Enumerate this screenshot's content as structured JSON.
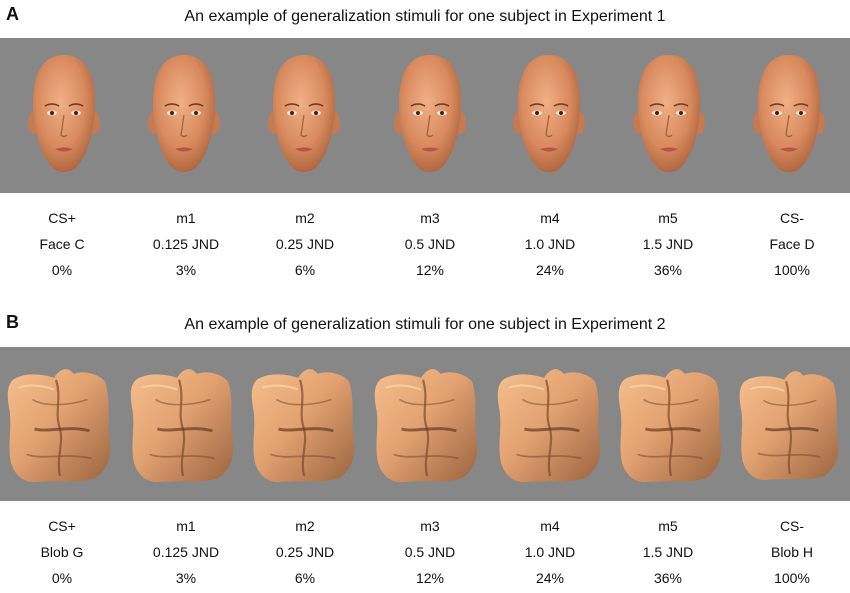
{
  "panel_a": {
    "letter": "A",
    "title": "An example of generalization stimuli for one subject in Experiment 1",
    "stimulus_type": "face-icon",
    "columns": [
      {
        "name": "CS+",
        "detail": "Face C",
        "percent": "0%"
      },
      {
        "name": "m1",
        "detail": "0.125 JND",
        "percent": "3%"
      },
      {
        "name": "m2",
        "detail": "0.25 JND",
        "percent": "6%"
      },
      {
        "name": "m3",
        "detail": "0.5 JND",
        "percent": "12%"
      },
      {
        "name": "m4",
        "detail": "1.0  JND",
        "percent": "24%"
      },
      {
        "name": "m5",
        "detail": "1.5 JND",
        "percent": "36%"
      },
      {
        "name": "CS-",
        "detail": "Face D",
        "percent": "100%"
      }
    ]
  },
  "panel_b": {
    "letter": "B",
    "title": "An example of generalization stimuli for one subject in Experiment 2",
    "stimulus_type": "blob-icon",
    "columns": [
      {
        "name": "CS+",
        "detail": "Blob G",
        "percent": "0%"
      },
      {
        "name": "m1",
        "detail": "0.125 JND",
        "percent": "3%"
      },
      {
        "name": "m2",
        "detail": "0.25 JND",
        "percent": "6%"
      },
      {
        "name": "m3",
        "detail": "0.5 JND",
        "percent": "12%"
      },
      {
        "name": "m4",
        "detail": "1.0  JND",
        "percent": "24%"
      },
      {
        "name": "m5",
        "detail": "1.5 JND",
        "percent": "36%"
      },
      {
        "name": "CS-",
        "detail": "Blob H",
        "percent": "100%"
      }
    ]
  },
  "colors": {
    "strip_background": "#878787",
    "face_skin": "#d98a5e",
    "blob_skin": "#e3a271"
  }
}
